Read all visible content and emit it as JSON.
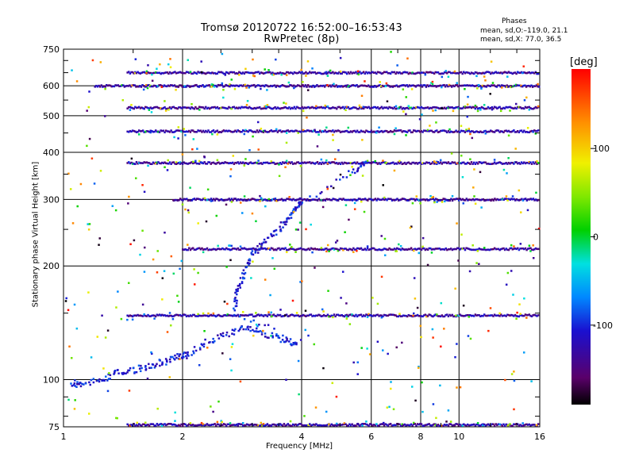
{
  "header": {
    "title_line1": "Tromsø 20120722 16:52:00–16:53:43",
    "title_line2": "RwPretec (8p)"
  },
  "phase_info": {
    "title": "Phases",
    "line_o": "mean, sd,O:–119.0, 21.1",
    "line_x": "mean, sd,X:  77.0, 36.5"
  },
  "colorbar": {
    "label": "[deg]",
    "ticks": [
      {
        "value": 100,
        "label": "100"
      },
      {
        "value": 0,
        "label": "0"
      },
      {
        "value": -100,
        "label": "-100"
      }
    ],
    "range": [
      -190,
      190
    ]
  },
  "chart_data": {
    "type": "scatter",
    "title": "Tromsø 20120722 16:52:00–16:53:43",
    "subtitle": "RwPretec (8p)",
    "xlabel": "Frequency [MHz]",
    "ylabel": "Stationary phase Virtual Height [km]",
    "x_scale": "log",
    "y_scale": "log",
    "xlim": [
      1,
      16
    ],
    "ylim": [
      75,
      750
    ],
    "xticks": [
      1,
      2,
      4,
      6,
      8,
      10,
      16
    ],
    "yticks": [
      75,
      100,
      200,
      300,
      400,
      500,
      600,
      750
    ],
    "grid": true,
    "color_variable": "phase [deg]",
    "bands": [
      {
        "height": 650,
        "fmin": 1.45,
        "fmax": 16
      },
      {
        "height": 600,
        "fmin": 1.2,
        "fmax": 16
      },
      {
        "height": 525,
        "fmin": 1.45,
        "fmax": 16
      },
      {
        "height": 455,
        "fmin": 1.45,
        "fmax": 16
      },
      {
        "height": 375,
        "fmin": 1.45,
        "fmax": 16
      },
      {
        "height": 300,
        "fmin": 1.9,
        "fmax": 16
      },
      {
        "height": 222,
        "fmin": 2.0,
        "fmax": 16
      },
      {
        "height": 148,
        "fmin": 1.45,
        "fmax": 16
      },
      {
        "height": 76,
        "fmin": 1.45,
        "fmax": 16
      }
    ],
    "trace": [
      [
        1.05,
        98
      ],
      [
        1.1,
        97
      ],
      [
        1.25,
        100
      ],
      [
        1.35,
        104
      ],
      [
        1.5,
        106
      ],
      [
        1.65,
        109
      ],
      [
        1.8,
        112
      ],
      [
        1.95,
        115
      ],
      [
        2.05,
        116
      ],
      [
        2.3,
        126
      ],
      [
        2.6,
        132
      ],
      [
        2.9,
        138
      ],
      [
        3.2,
        132
      ],
      [
        3.6,
        128
      ],
      [
        3.9,
        124
      ],
      [
        2.7,
        150
      ],
      [
        2.75,
        170
      ],
      [
        2.85,
        190
      ],
      [
        3.0,
        215
      ],
      [
        3.2,
        230
      ],
      [
        3.5,
        250
      ],
      [
        3.7,
        270
      ],
      [
        3.9,
        290
      ],
      [
        4.0,
        298
      ],
      [
        5.5,
        360
      ],
      [
        5.8,
        378
      ]
    ]
  }
}
